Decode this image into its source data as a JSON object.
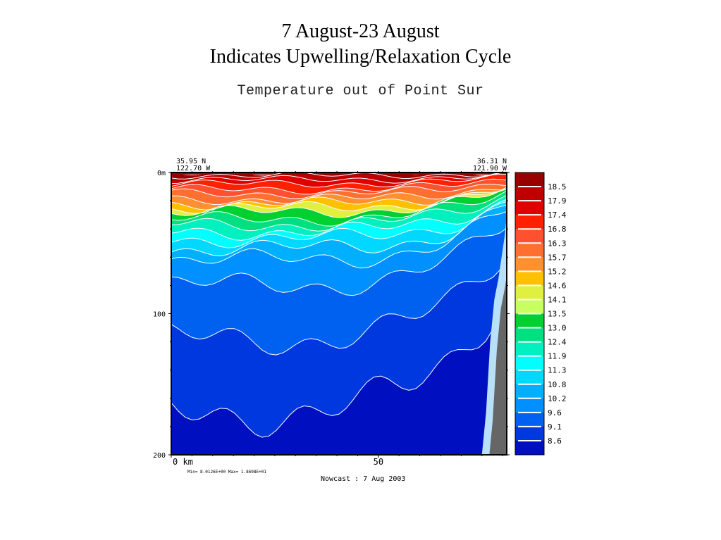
{
  "slide": {
    "title_line1": "7 August-23 August",
    "title_line2": "Indicates Upwelling/Relaxation Cycle"
  },
  "chart_data": {
    "type": "heatmap",
    "title": "Temperature out of Point Sur",
    "corner_left": {
      "lat": "35.95 N",
      "lon": "122.70 W"
    },
    "corner_right": {
      "lat": "36.31 N",
      "lon": "121.90 W"
    },
    "xlabel": "km",
    "x_ticks": [
      {
        "value": 0,
        "label": "0 km"
      },
      {
        "value": 50,
        "label": "50"
      }
    ],
    "xlim": [
      0,
      81
    ],
    "y_ticks": [
      {
        "value": 0,
        "label": "0m"
      },
      {
        "value": 100,
        "label": "100"
      },
      {
        "value": 200,
        "label": "200"
      }
    ],
    "ylim": [
      0,
      200
    ],
    "yaxis_inverted": true,
    "minmax_text": "Min= 8.0126E+00  Max= 1.8698E+01",
    "footer": "Nowcast :  7 Aug 2003",
    "colorbar": {
      "labels": [
        "18.5",
        "17.9",
        "17.4",
        "16.8",
        "16.3",
        "15.7",
        "15.2",
        "14.6",
        "14.1",
        "13.5",
        "13.0",
        "12.4",
        "11.9",
        "11.3",
        "10.8",
        "10.2",
        "9.6",
        "9.1",
        "8.6"
      ],
      "colors": [
        "#990000",
        "#c00000",
        "#e00000",
        "#ff2000",
        "#ff5030",
        "#ff7030",
        "#ff9030",
        "#ffc000",
        "#e0f040",
        "#c8ff60",
        "#00d030",
        "#00e080",
        "#00f0c0",
        "#00ffff",
        "#00d8ff",
        "#00b0ff",
        "#0090ff",
        "#0060f0",
        "#0038e0",
        "#0010c0"
      ]
    },
    "layers": [
      {
        "temp": 18.5,
        "depth_m": 0,
        "color": "#990000"
      },
      {
        "temp": 17.9,
        "depth_m": 2,
        "color": "#c00000"
      },
      {
        "temp": 17.4,
        "depth_m": 5,
        "color": "#e00000"
      },
      {
        "temp": 16.8,
        "depth_m": 8,
        "color": "#ff2000"
      },
      {
        "temp": 16.3,
        "depth_m": 12,
        "color": "#ff5030"
      },
      {
        "temp": 15.7,
        "depth_m": 15,
        "color": "#ff7030"
      },
      {
        "temp": 15.2,
        "depth_m": 19,
        "color": "#ff9030"
      },
      {
        "temp": 14.6,
        "depth_m": 22,
        "color": "#ffc000"
      },
      {
        "temp": 14.1,
        "depth_m": 25,
        "color": "#e0f040"
      },
      {
        "temp": 13.5,
        "depth_m": 28,
        "color": "#00d030"
      },
      {
        "temp": 13.0,
        "depth_m": 33,
        "color": "#00e080"
      },
      {
        "temp": 12.4,
        "depth_m": 37,
        "color": "#00f0c0"
      },
      {
        "temp": 11.9,
        "depth_m": 42,
        "color": "#00ffff"
      },
      {
        "temp": 11.3,
        "depth_m": 47,
        "color": "#00d8ff"
      },
      {
        "temp": 10.8,
        "depth_m": 54,
        "color": "#00b0ff"
      },
      {
        "temp": 10.2,
        "depth_m": 62,
        "color": "#0090ff"
      },
      {
        "temp": 9.6,
        "depth_m": 80,
        "color": "#0060f0"
      },
      {
        "temp": 9.1,
        "depth_m": 118,
        "color": "#0038e0"
      },
      {
        "temp": 8.6,
        "depth_m": 170,
        "color": "#0010c0"
      }
    ],
    "shelf_color": "#666666",
    "shelf_edge_color": "#b8e0f8"
  }
}
